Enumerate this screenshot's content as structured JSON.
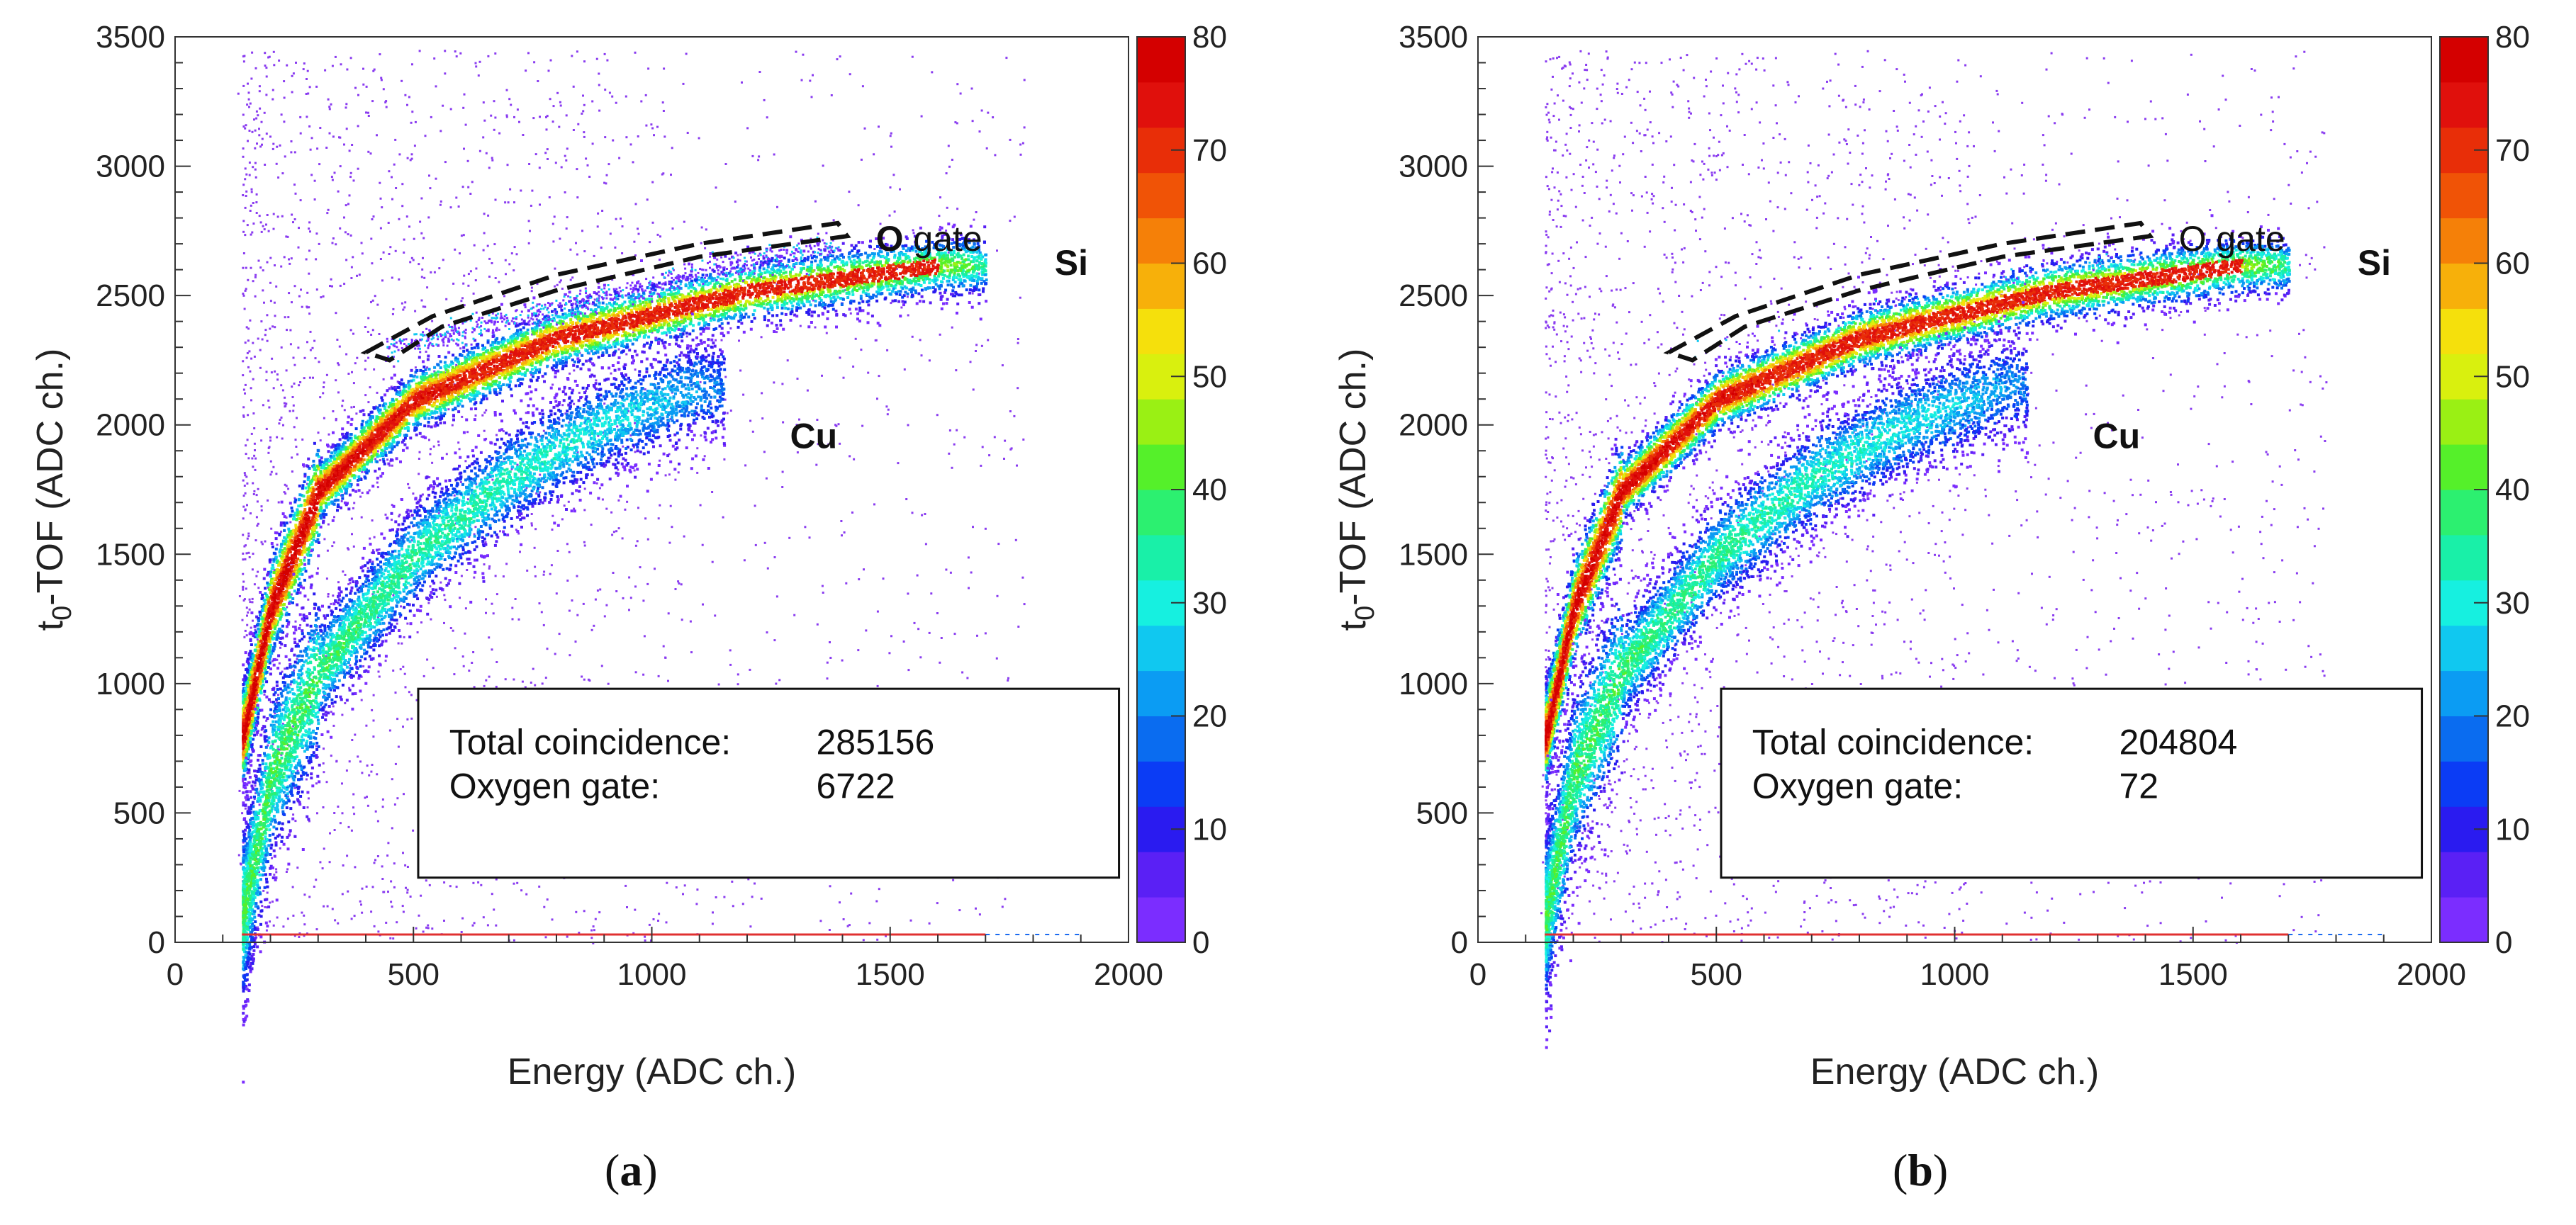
{
  "chart_data": [
    {
      "type": "heatmap",
      "panel_label": "a",
      "xlabel": "Energy (ADC ch.)",
      "ylabel_main": "t",
      "ylabel_sub": "0",
      "ylabel_rest": "-TOF (ADC ch.)",
      "xlim": [
        0,
        2000
      ],
      "ylim": [
        0,
        3500
      ],
      "x_ticks": [
        "0",
        "500",
        "1000",
        "1500",
        "2000"
      ],
      "y_ticks": [
        "0",
        "500",
        "1000",
        "1500",
        "2000",
        "2500",
        "3000",
        "3500"
      ],
      "colorbar": {
        "range": [
          0,
          80
        ],
        "ticks": [
          "0",
          "10",
          "20",
          "30",
          "40",
          "50",
          "60",
          "70",
          "80"
        ]
      },
      "annotations": {
        "o_gate_prefix": "O",
        "o_gate_suffix": " gate",
        "o_gate_prefix_bold": true,
        "si": "Si",
        "cu": "Cu"
      },
      "info_box": [
        {
          "label": "Total coincidence:",
          "value": "285156"
        },
        {
          "label": "Oxygen gate:",
          "value": "6722"
        }
      ],
      "bands": [
        {
          "name": "Si",
          "x_range": [
            140,
            1700
          ],
          "y_at_x": [
            [
              140,
              800
            ],
            [
              200,
              1300
            ],
            [
              300,
              1750
            ],
            [
              500,
              2100
            ],
            [
              800,
              2340
            ],
            [
              1200,
              2520
            ],
            [
              1600,
              2620
            ]
          ],
          "peak_counts": 80
        },
        {
          "name": "Cu",
          "x_range": [
            140,
            1150
          ],
          "y_at_x": [
            [
              140,
              100
            ],
            [
              200,
              650
            ],
            [
              300,
              1050
            ],
            [
              500,
              1500
            ],
            [
              700,
              1800
            ],
            [
              900,
              2010
            ],
            [
              1100,
              2150
            ]
          ],
          "peak_counts": 40
        }
      ],
      "o_gate_polygon": [
        [
          400,
          2280
        ],
        [
          540,
          2420
        ],
        [
          800,
          2580
        ],
        [
          1100,
          2700
        ],
        [
          1390,
          2780
        ],
        [
          1410,
          2730
        ],
        [
          1100,
          2650
        ],
        [
          800,
          2520
        ],
        [
          560,
          2380
        ],
        [
          450,
          2250
        ]
      ]
    },
    {
      "type": "heatmap",
      "panel_label": "b",
      "xlabel": "Energy (ADC ch.)",
      "ylabel_main": "t",
      "ylabel_sub": "0",
      "ylabel_rest": "-TOF (ADC ch.)",
      "xlim": [
        0,
        2000
      ],
      "ylim": [
        0,
        3500
      ],
      "x_ticks": [
        "0",
        "500",
        "1000",
        "1500",
        "2000"
      ],
      "y_ticks": [
        "0",
        "500",
        "1000",
        "1500",
        "2000",
        "2500",
        "3000",
        "3500"
      ],
      "colorbar": {
        "range": [
          0,
          80
        ],
        "ticks": [
          "0",
          "10",
          "20",
          "30",
          "40",
          "50",
          "60",
          "70",
          "80"
        ]
      },
      "annotations": {
        "o_gate_prefix": "O",
        "o_gate_suffix": " gate",
        "o_gate_prefix_bold": false,
        "si": "Si",
        "cu": "Cu"
      },
      "info_box": [
        {
          "label": "Total coincidence:",
          "value": "204804"
        },
        {
          "label": "Oxygen gate:",
          "value": "72"
        }
      ],
      "bands": [
        {
          "name": "Si",
          "x_range": [
            140,
            1700
          ],
          "y_at_x": [
            [
              140,
              800
            ],
            [
              200,
              1300
            ],
            [
              300,
              1750
            ],
            [
              500,
              2100
            ],
            [
              800,
              2340
            ],
            [
              1200,
              2520
            ],
            [
              1600,
              2620
            ]
          ],
          "peak_counts": 80
        },
        {
          "name": "Cu",
          "x_range": [
            140,
            1150
          ],
          "y_at_x": [
            [
              140,
              100
            ],
            [
              200,
              650
            ],
            [
              300,
              1050
            ],
            [
              500,
              1500
            ],
            [
              700,
              1800
            ],
            [
              900,
              2010
            ],
            [
              1100,
              2150
            ]
          ],
          "peak_counts": 40
        }
      ],
      "o_gate_polygon": [
        [
          400,
          2280
        ],
        [
          540,
          2420
        ],
        [
          800,
          2580
        ],
        [
          1100,
          2700
        ],
        [
          1390,
          2780
        ],
        [
          1410,
          2730
        ],
        [
          1100,
          2650
        ],
        [
          800,
          2520
        ],
        [
          560,
          2380
        ],
        [
          450,
          2250
        ]
      ]
    }
  ]
}
